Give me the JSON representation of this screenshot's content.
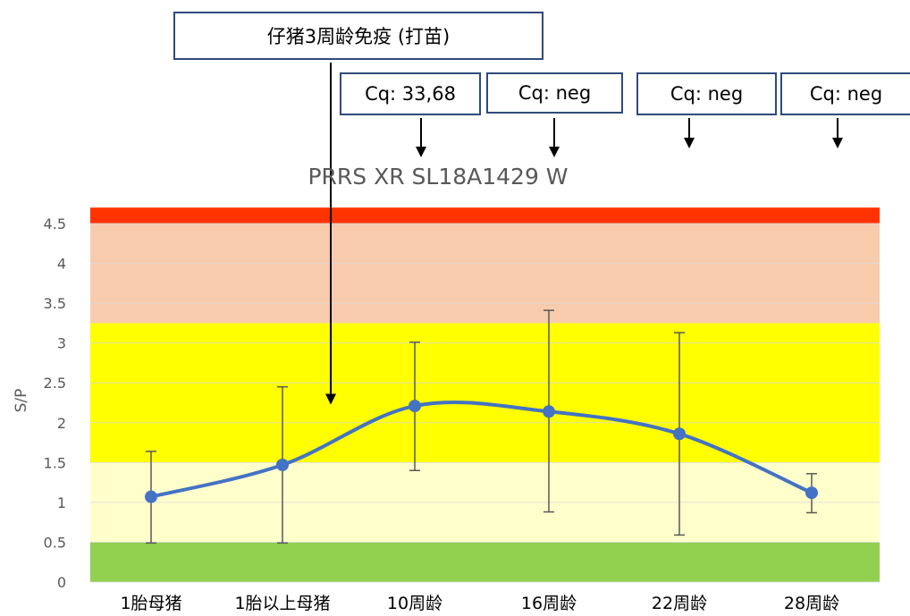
{
  "chart_data": {
    "type": "line",
    "title": "PRRS XR SL18A1429 W",
    "ylabel": "S/P",
    "xlabel": "",
    "ylim": [
      0,
      4.5
    ],
    "yticks": [
      "0",
      "0.5",
      "1",
      "1.5",
      "2",
      "2.5",
      "3",
      "3.5",
      "4",
      "4.5"
    ],
    "categories": [
      "1胎母猪",
      "1胎以上母猪",
      "10周龄",
      "16周龄",
      "22周龄",
      "28周龄"
    ],
    "series": [
      {
        "values": [
          1.07,
          1.47,
          2.21,
          2.14,
          1.86,
          1.12
        ],
        "error_low": [
          0.49,
          0.49,
          1.4,
          0.88,
          0.59,
          0.87
        ],
        "error_high": [
          1.64,
          2.45,
          3.01,
          3.41,
          3.13,
          1.36
        ],
        "color": "#4472C4",
        "smooth": true
      }
    ],
    "bands": [
      {
        "from": 0,
        "to": 0.5,
        "color": "#92D050"
      },
      {
        "from": 0.5,
        "to": 1.5,
        "color": "#FFFFCC"
      },
      {
        "from": 1.5,
        "to": 3.25,
        "color": "#FFFF00"
      },
      {
        "from": 3.25,
        "to": 4.5,
        "color": "#F8CBAD"
      },
      {
        "from": 4.5,
        "to": 4.7,
        "color": "#FF3300"
      }
    ],
    "grid": true,
    "legend": "none"
  },
  "annotations": {
    "vaccination": {
      "text": "仔猪3周龄免疫 (打苗)",
      "arrow_to_value": 2.25
    },
    "cq_boxes": [
      {
        "text": "Cq: 33,68",
        "category_index": 2
      },
      {
        "text": "Cq: neg",
        "category_index": 3
      },
      {
        "text": "Cq: neg",
        "category_index": 4
      },
      {
        "text": "Cq: neg",
        "category_index": 5
      }
    ]
  }
}
